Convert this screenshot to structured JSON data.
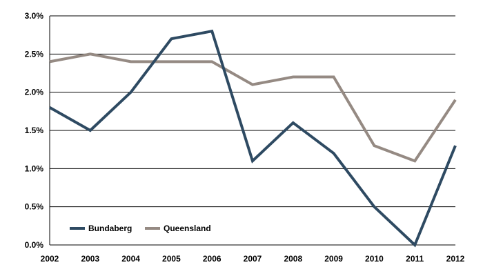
{
  "chart_data": {
    "type": "line",
    "x": [
      "2002",
      "2003",
      "2004",
      "2005",
      "2006",
      "2007",
      "2008",
      "2009",
      "2010",
      "2011",
      "2012"
    ],
    "series": [
      {
        "name": "Bundaberg",
        "color": "#2e4a62",
        "values": [
          1.8,
          1.5,
          2.0,
          2.7,
          2.8,
          1.1,
          1.6,
          1.2,
          0.5,
          0.0,
          1.3
        ]
      },
      {
        "name": "Queensland",
        "color": "#958a83",
        "values": [
          2.4,
          2.5,
          2.4,
          2.4,
          2.4,
          2.1,
          2.2,
          2.2,
          1.3,
          1.1,
          1.9
        ]
      }
    ],
    "ylim": [
      0,
      3.0
    ],
    "yticks": [
      "0.0%",
      "0.5%",
      "1.0%",
      "1.5%",
      "2.0%",
      "2.5%",
      "3.0%"
    ],
    "grid": true,
    "legend_position": "bottom-left",
    "title": "",
    "xlabel": "",
    "ylabel": ""
  }
}
